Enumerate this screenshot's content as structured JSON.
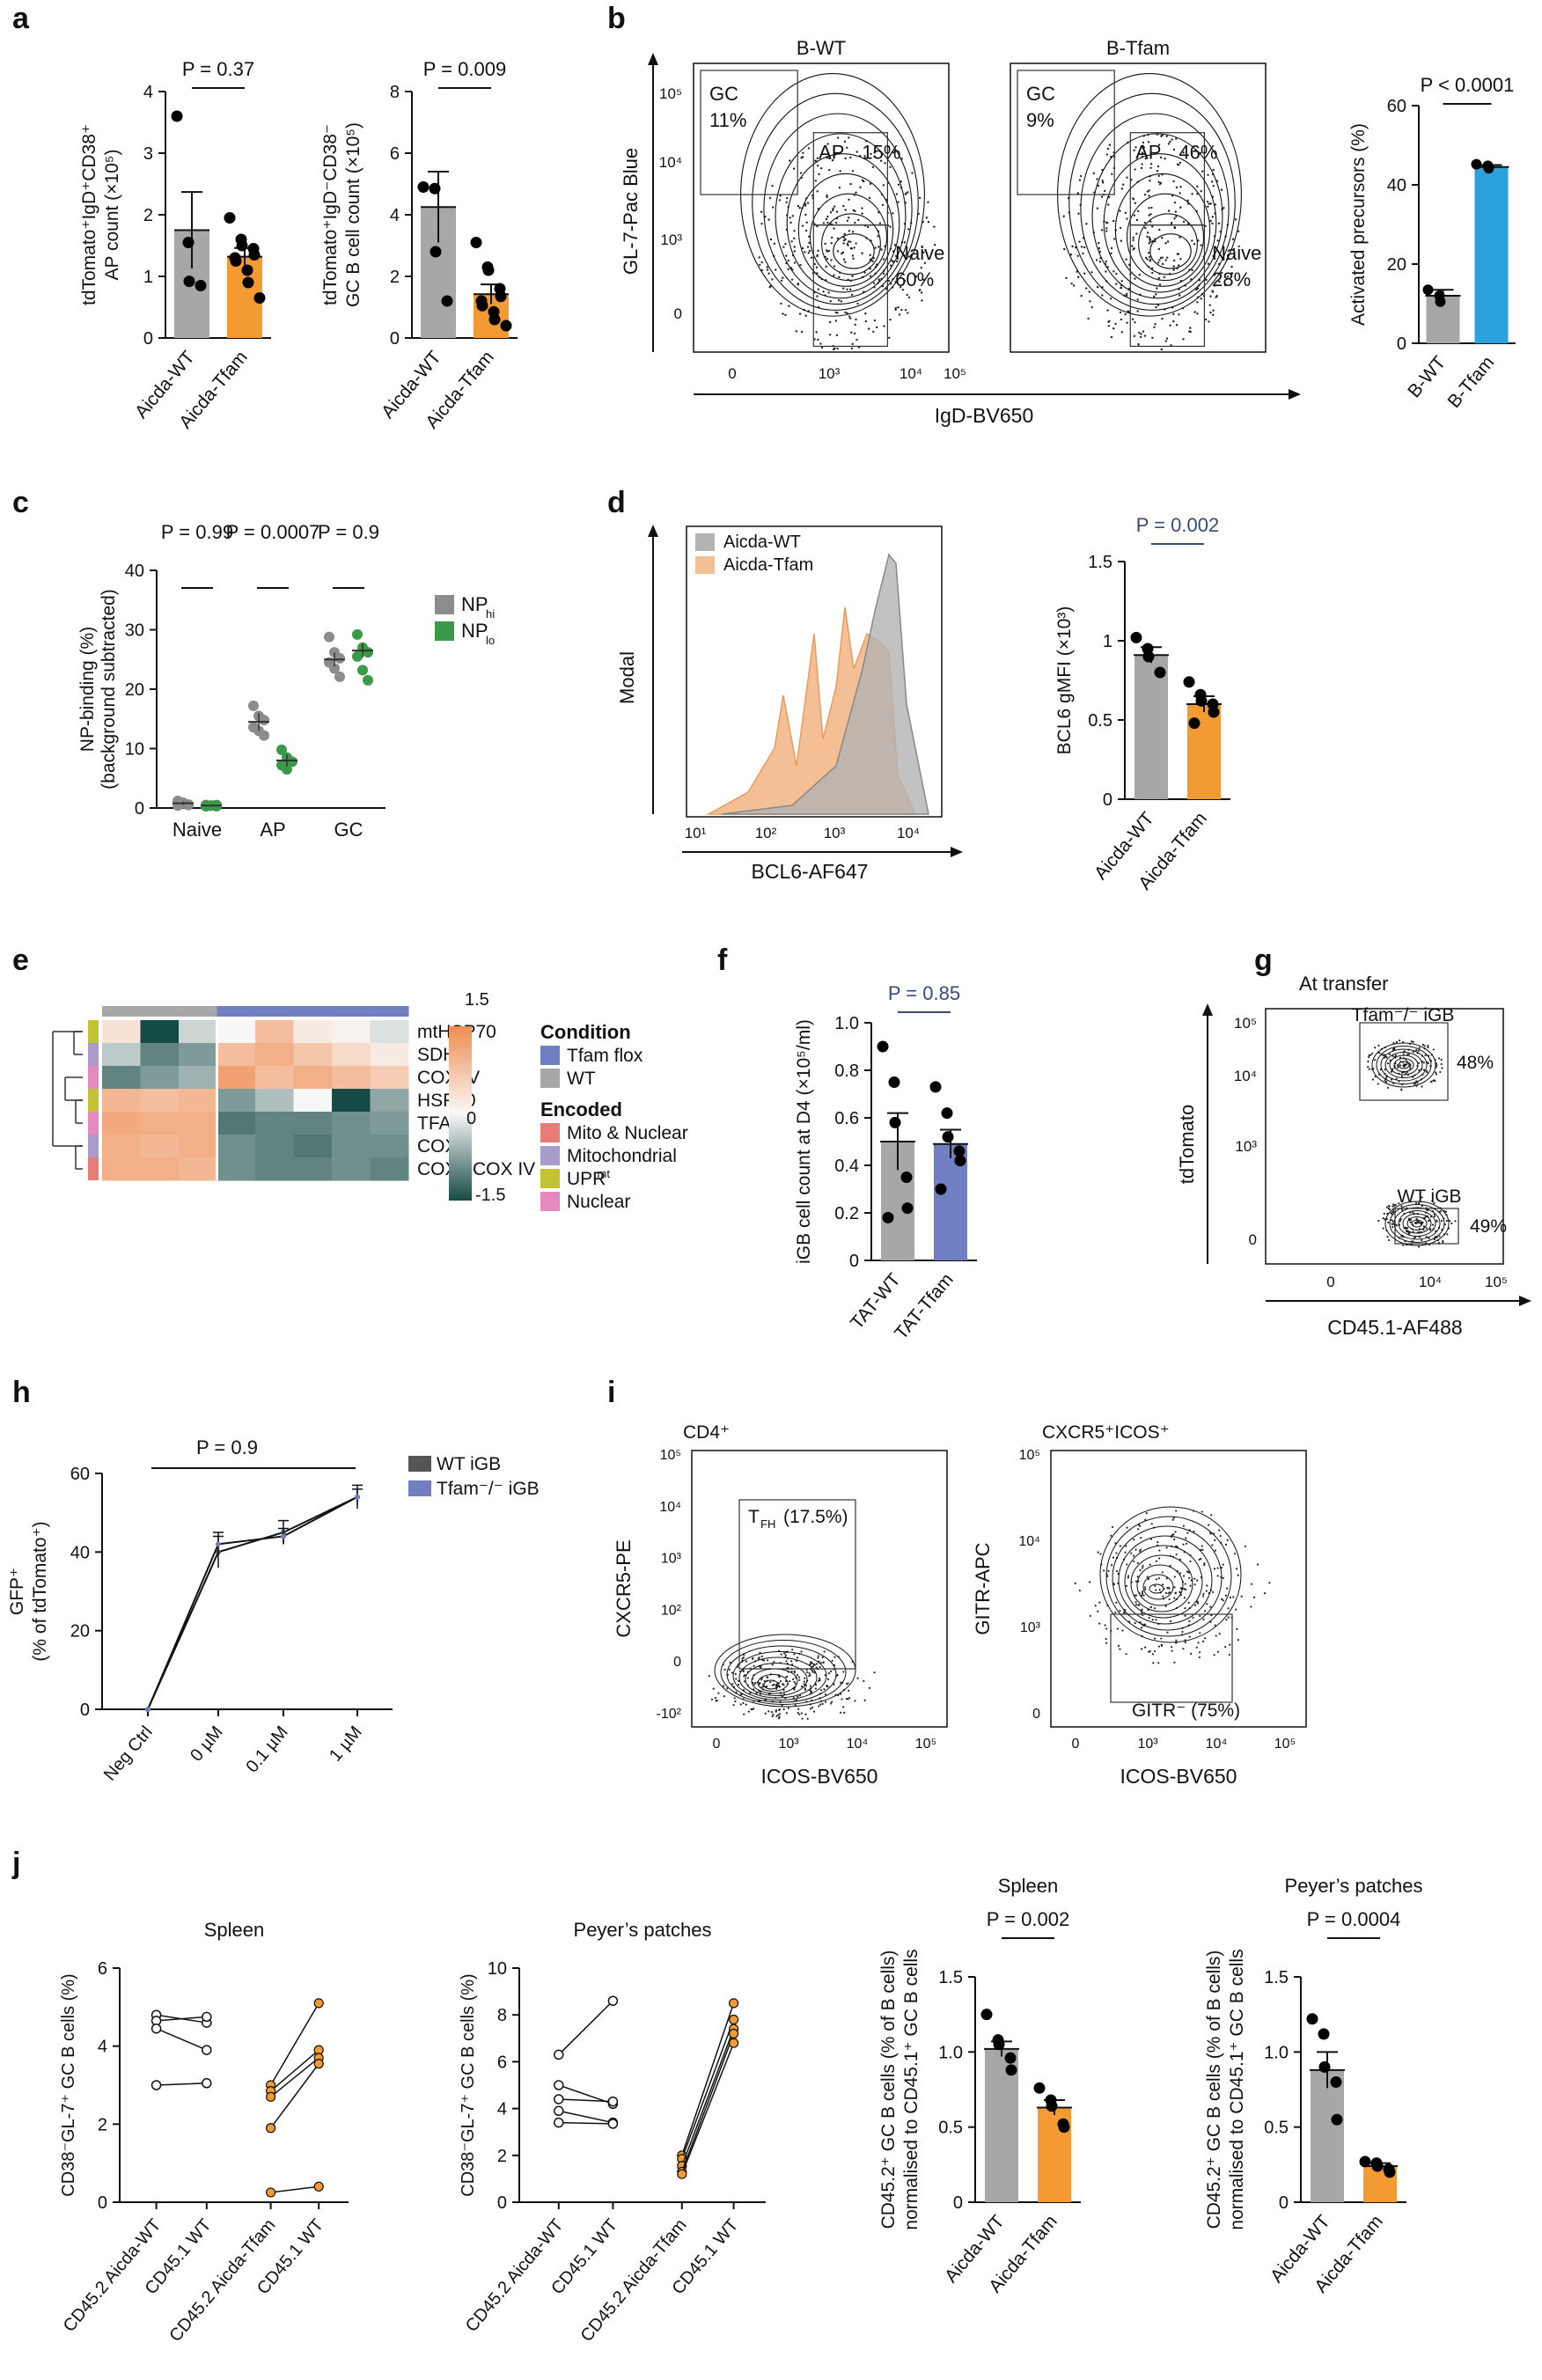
{
  "figure": {
    "panel_labels": [
      "a",
      "b",
      "c",
      "d",
      "e",
      "f",
      "g",
      "h",
      "i",
      "j"
    ],
    "colors": {
      "wt_grey": "#a7a7a7",
      "tfam_orange": "#f39a32",
      "btfam_blue": "#2aa2dc",
      "tfam_purple": "#6f7fc0",
      "np_hi": "#8c8c8c",
      "np_lo": "#3a9a48"
    }
  },
  "chart_data": [
    {
      "id": "a1",
      "type": "bar",
      "categories": [
        "Aicda-WT",
        "Aicda-Tfam"
      ],
      "values": [
        1.75,
        1.32
      ],
      "sem": [
        0.62,
        0.14
      ],
      "points": [
        [
          3.6,
          1.55,
          0.92,
          0.85
        ],
        [
          1.95,
          1.6,
          1.5,
          1.45,
          1.35,
          1.3,
          1.25,
          1.1,
          0.9,
          0.65
        ]
      ],
      "ylabel": [
        "tdTomato⁺IgD⁺CD38⁺",
        "AP count (×10⁵)"
      ],
      "ylim": [
        0,
        4
      ],
      "yticks": [
        "0",
        "1",
        "2",
        "3",
        "4"
      ],
      "pvalue": "P = 0.37"
    },
    {
      "id": "a2",
      "type": "bar",
      "categories": [
        "Aicda-WT",
        "Aicda-Tfam"
      ],
      "values": [
        4.25,
        1.42
      ],
      "sem": [
        1.15,
        0.32
      ],
      "points": [
        [
          4.9,
          4.85,
          2.8,
          1.2
        ],
        [
          3.1,
          2.3,
          2.2,
          1.6,
          1.35,
          1.2,
          1.05,
          0.85,
          0.6,
          0.4
        ]
      ],
      "ylabel": [
        "tdTomato⁺IgD⁻CD38⁻",
        "GC B cell count (×10⁵)"
      ],
      "ylim": [
        0,
        8
      ],
      "yticks": [
        "0",
        "2",
        "4",
        "6",
        "8"
      ],
      "pvalue": "P = 0.009"
    },
    {
      "id": "b-flow",
      "type": "scatter",
      "title_left": "B-WT",
      "title_right": "B-Tfam",
      "xlabel": "IgD-BV650",
      "ylabel": "GL-7-Pac Blue",
      "xticks": [
        "0",
        "10³",
        "10⁴",
        "10⁵"
      ],
      "yticks": [
        "0",
        "10³",
        "10⁴",
        "10⁵"
      ],
      "gates_left": [
        {
          "name": "GC",
          "pct": "11%"
        },
        {
          "name": "AP",
          "pct": "15%"
        },
        {
          "name": "Naive",
          "pct": "60%"
        }
      ],
      "gates_right": [
        {
          "name": "GC",
          "pct": "9%"
        },
        {
          "name": "AP",
          "pct": "46%"
        },
        {
          "name": "Naive",
          "pct": "28%"
        }
      ]
    },
    {
      "id": "b-bar",
      "type": "bar",
      "categories": [
        "B-WT",
        "B-Tfam"
      ],
      "values": [
        12,
        44.5
      ],
      "sem": [
        1.5,
        0.5
      ],
      "points": [
        [
          13.5,
          12,
          10.5
        ],
        [
          45.2,
          44.8,
          44.2
        ]
      ],
      "ylabel": [
        "Activated precursors (%)"
      ],
      "ylim": [
        0,
        60
      ],
      "yticks": [
        "0",
        "20",
        "40",
        "60"
      ],
      "pvalue": "P < 0.0001"
    },
    {
      "id": "c",
      "type": "scatter",
      "categories": [
        "Naive",
        "AP",
        "GC"
      ],
      "series": [
        {
          "name": "NPhi",
          "label": "NP",
          "sub": "hi",
          "means": [
            0.8,
            14.5,
            25
          ],
          "sem": [
            0.3,
            1.5,
            1.2
          ],
          "points": [
            [
              1.2,
              0.8,
              0.5,
              0.4,
              0.9,
              0.6
            ],
            [
              17.2,
              15.5,
              14.8,
              13.6,
              13.0,
              12.2
            ],
            [
              28.8,
              26.2,
              25.2,
              24.5,
              23.5,
              22.1
            ]
          ]
        },
        {
          "name": "NPlo",
          "label": "NP",
          "sub": "lo",
          "means": [
            0.4,
            8,
            26.5
          ],
          "sem": [
            0.1,
            1,
            1.2
          ],
          "points": [
            [
              0.5,
              0.4,
              0.3,
              0.3,
              0.4,
              0.5
            ],
            [
              9.8,
              8.5,
              7.8,
              7.2,
              6.5
            ],
            [
              29.2,
              27.0,
              26.2,
              25.5,
              23.2,
              21.5
            ]
          ]
        }
      ],
      "ylabel": [
        "NP-binding (%)",
        "(background subtracted)"
      ],
      "ylim": [
        0,
        40
      ],
      "yticks": [
        "0",
        "10",
        "20",
        "30",
        "40"
      ],
      "pvalues": [
        "P = 0.99",
        "P = 0.0007",
        "P = 0.9"
      ]
    },
    {
      "id": "d-hist",
      "type": "area",
      "series": [
        "Aicda-WT",
        "Aicda-Tfam"
      ],
      "xlabel": "BCL6-AF647",
      "ylabel": "Modal",
      "xticks": [
        "10¹",
        "10²",
        "10³",
        "10⁴"
      ]
    },
    {
      "id": "d-bar",
      "type": "bar",
      "categories": [
        "Aicda-WT",
        "Aicda-Tfam"
      ],
      "values": [
        0.91,
        0.6
      ],
      "sem": [
        0.05,
        0.05
      ],
      "points": [
        [
          1.02,
          0.95,
          0.9,
          0.8
        ],
        [
          0.74,
          0.66,
          0.62,
          0.6,
          0.55,
          0.48
        ]
      ],
      "ylabel": [
        "BCL6 gMFI (×10³)"
      ],
      "ylim": [
        0,
        1.5
      ],
      "yticks": [
        "0",
        "0.5",
        "1",
        "1.5"
      ],
      "pvalue": "P = 0.002"
    },
    {
      "id": "e",
      "type": "heatmap",
      "rows": [
        "mtHSP70",
        "SDHA",
        "COX IV",
        "HSP60",
        "TFAM",
        "COX I",
        "COX I:COX IV"
      ],
      "values": [
        [
          0.3,
          -1.5,
          -0.3,
          0.0,
          0.8,
          0.2,
          0.1,
          -0.2
        ],
        [
          -0.4,
          -1.0,
          -0.8,
          0.8,
          1.0,
          0.7,
          0.4,
          0.2
        ],
        [
          -1.0,
          -0.8,
          -0.6,
          1.2,
          0.8,
          1.0,
          0.8,
          0.6
        ],
        [
          0.9,
          0.8,
          0.9,
          -0.8,
          -0.5,
          0.0,
          -1.5,
          -0.7
        ],
        [
          1.1,
          1.0,
          1.0,
          -1.1,
          -1.0,
          -1.0,
          -0.9,
          -0.8
        ],
        [
          1.0,
          0.9,
          1.0,
          -0.9,
          -1.0,
          -1.1,
          -0.9,
          -0.9
        ],
        [
          1.0,
          1.0,
          0.9,
          -0.9,
          -1.0,
          -1.0,
          -0.9,
          -1.0
        ]
      ],
      "col_condition": [
        "WT",
        "WT",
        "WT",
        "Tfam flox",
        "Tfam flox",
        "Tfam flox",
        "Tfam flox",
        "Tfam flox"
      ],
      "row_encoded": [
        "UPRmt",
        "Mitochondrial",
        "Nuclear",
        "UPRmt",
        "Nuclear",
        "Mitochondrial",
        "Mito & Nuclear"
      ],
      "scale": {
        "max": "1.5",
        "mid": "0",
        "min": "-1.5"
      },
      "legend": {
        "condition_title": "Condition",
        "condition": [
          {
            "name": "Tfam flox",
            "color": "#6f7fc0"
          },
          {
            "name": "WT",
            "color": "#a7a7a7"
          }
        ],
        "encoded_title": "Encoded",
        "encoded": [
          {
            "name": "Mito & Nuclear",
            "color": "#e77b76"
          },
          {
            "name": "Mitochondrial",
            "color": "#a99bcc"
          },
          {
            "name": "UPR",
            "sup": "mt",
            "color": "#c2c232"
          },
          {
            "name": "Nuclear",
            "color": "#e58ac0"
          }
        ]
      }
    },
    {
      "id": "f",
      "type": "bar",
      "categories": [
        "TAT-WT",
        "TAT-Tfam"
      ],
      "values": [
        0.5,
        0.49
      ],
      "sem": [
        0.12,
        0.06
      ],
      "points": [
        [
          0.9,
          0.75,
          0.58,
          0.35,
          0.22,
          0.18
        ],
        [
          0.73,
          0.62,
          0.52,
          0.46,
          0.42,
          0.3
        ]
      ],
      "ylabel": [
        "iGB cell count at D4 (×10⁵/ml)"
      ],
      "ylim": [
        0,
        1.0
      ],
      "yticks": [
        "0",
        "0.2",
        "0.4",
        "0.6",
        "0.8",
        "1.0"
      ],
      "pvalue": "P = 0.85"
    },
    {
      "id": "g",
      "type": "scatter",
      "title": "At transfer",
      "xlabel": "CD45.1-AF488",
      "ylabel": "tdTomato",
      "xticks": [
        "0",
        "10⁴",
        "10⁵"
      ],
      "yticks": [
        "0",
        "10³",
        "10⁴",
        "10⁵"
      ],
      "gates": [
        {
          "name": "Tfam⁻/⁻ iGB",
          "pct": "48%"
        },
        {
          "name": "WT iGB",
          "pct": "49%"
        }
      ]
    },
    {
      "id": "h",
      "type": "line",
      "categories": [
        "Neg Ctrl",
        "0 µM",
        "0.1 µM",
        "1 µM"
      ],
      "series": [
        {
          "name": "WT iGB",
          "values": [
            0,
            40,
            45,
            54
          ],
          "sem": [
            0,
            4,
            3,
            3
          ]
        },
        {
          "name": "Tfam⁻/⁻ iGB",
          "values": [
            0,
            42,
            44,
            54
          ],
          "sem": [
            0,
            3,
            2,
            2
          ]
        }
      ],
      "ylabel": [
        "GFP⁺",
        "(% of tdTomato⁺)"
      ],
      "ylim": [
        0,
        60
      ],
      "yticks": [
        "0",
        "20",
        "40",
        "60"
      ],
      "pvalue": "P = 0.9"
    },
    {
      "id": "i-left",
      "type": "scatter",
      "title": "CD4⁺",
      "xlabel": "ICOS-BV650",
      "ylabel": "CXCR5-PE",
      "gate": "T",
      "gate_sub": "FH",
      "gate_pct": "(17.5%)",
      "xticks": [
        "0",
        "10³",
        "10⁴",
        "10⁵"
      ],
      "yticks": [
        "-10²",
        "0",
        "10²",
        "10³",
        "10⁴",
        "10⁵"
      ]
    },
    {
      "id": "i-right",
      "type": "scatter",
      "title": "CXCR5⁺ICOS⁺",
      "xlabel": "ICOS-BV650",
      "ylabel": "GITR-APC",
      "gate": "GITR⁻ (75%)",
      "xticks": [
        "0",
        "10³",
        "10⁴",
        "10⁵"
      ],
      "yticks": [
        "0",
        "10³",
        "10⁴",
        "10⁵"
      ]
    },
    {
      "id": "j1",
      "type": "line",
      "title": "Spleen",
      "categories": [
        "CD45.2 Aicda-WT",
        "CD45.1 WT",
        "CD45.2 Aicda-Tfam",
        "CD45.1 WT"
      ],
      "pairs_wt": [
        [
          4.8,
          4.6
        ],
        [
          4.65,
          4.75
        ],
        [
          4.45,
          3.9
        ],
        [
          3.0,
          3.05
        ]
      ],
      "pairs_tfam": [
        [
          3.0,
          5.1
        ],
        [
          2.85,
          3.9
        ],
        [
          2.7,
          3.7
        ],
        [
          1.9,
          3.55
        ],
        [
          0.25,
          0.4
        ]
      ],
      "ylabel": [
        "CD38⁻GL-7⁺ GC B cells (%)"
      ],
      "ylim": [
        0,
        6
      ],
      "yticks": [
        "0",
        "2",
        "4",
        "6"
      ]
    },
    {
      "id": "j2",
      "type": "line",
      "title": "Peyer’s patches",
      "categories": [
        "CD45.2 Aicda-WT",
        "CD45.1 WT",
        "CD45.2 Aicda-Tfam",
        "CD45.1 WT"
      ],
      "pairs_wt": [
        [
          6.3,
          8.6
        ],
        [
          5.0,
          4.2
        ],
        [
          4.4,
          4.3
        ],
        [
          3.9,
          3.4
        ],
        [
          3.4,
          3.35
        ]
      ],
      "pairs_tfam": [
        [
          2.0,
          8.5
        ],
        [
          1.85,
          7.8
        ],
        [
          1.55,
          7.4
        ],
        [
          1.3,
          7.2
        ],
        [
          1.2,
          6.8
        ]
      ],
      "ylabel": [
        "CD38⁻GL-7⁺ GC B cells (%)"
      ],
      "ylim": [
        0,
        10
      ],
      "yticks": [
        "0",
        "2",
        "4",
        "6",
        "8",
        "10"
      ]
    },
    {
      "id": "j3",
      "type": "bar",
      "title": "Spleen",
      "categories": [
        "Aicda-WT",
        "Aicda-Tfam"
      ],
      "values": [
        1.02,
        0.63
      ],
      "sem": [
        0.05,
        0.05
      ],
      "points": [
        [
          1.25,
          1.08,
          1.05,
          0.96,
          0.88
        ],
        [
          0.76,
          0.68,
          0.64,
          0.52,
          0.5
        ]
      ],
      "ylabel": [
        "CD45.2⁺ GC B cells (% of B cells)",
        "normalised to CD45.1⁺ GC B cells"
      ],
      "ylim": [
        0,
        1.5
      ],
      "yticks": [
        "0",
        "0.5",
        "1.0",
        "1.5"
      ],
      "pvalue": "P = 0.002"
    },
    {
      "id": "j4",
      "type": "bar",
      "title": "Peyer’s patches",
      "categories": [
        "Aicda-WT",
        "Aicda-Tfam"
      ],
      "values": [
        0.88,
        0.24
      ],
      "sem": [
        0.12,
        0.02
      ],
      "points": [
        [
          1.22,
          1.12,
          0.9,
          0.8,
          0.55
        ],
        [
          0.27,
          0.26,
          0.24,
          0.22,
          0.2
        ]
      ],
      "ylabel": [
        "CD45.2⁺ GC B cells (% of B cells)",
        "normalised to CD45.1⁺ GC B cells"
      ],
      "ylim": [
        0,
        1.5
      ],
      "yticks": [
        "0",
        "0.5",
        "1.0",
        "1.5"
      ],
      "pvalue": "P = 0.0004"
    }
  ]
}
